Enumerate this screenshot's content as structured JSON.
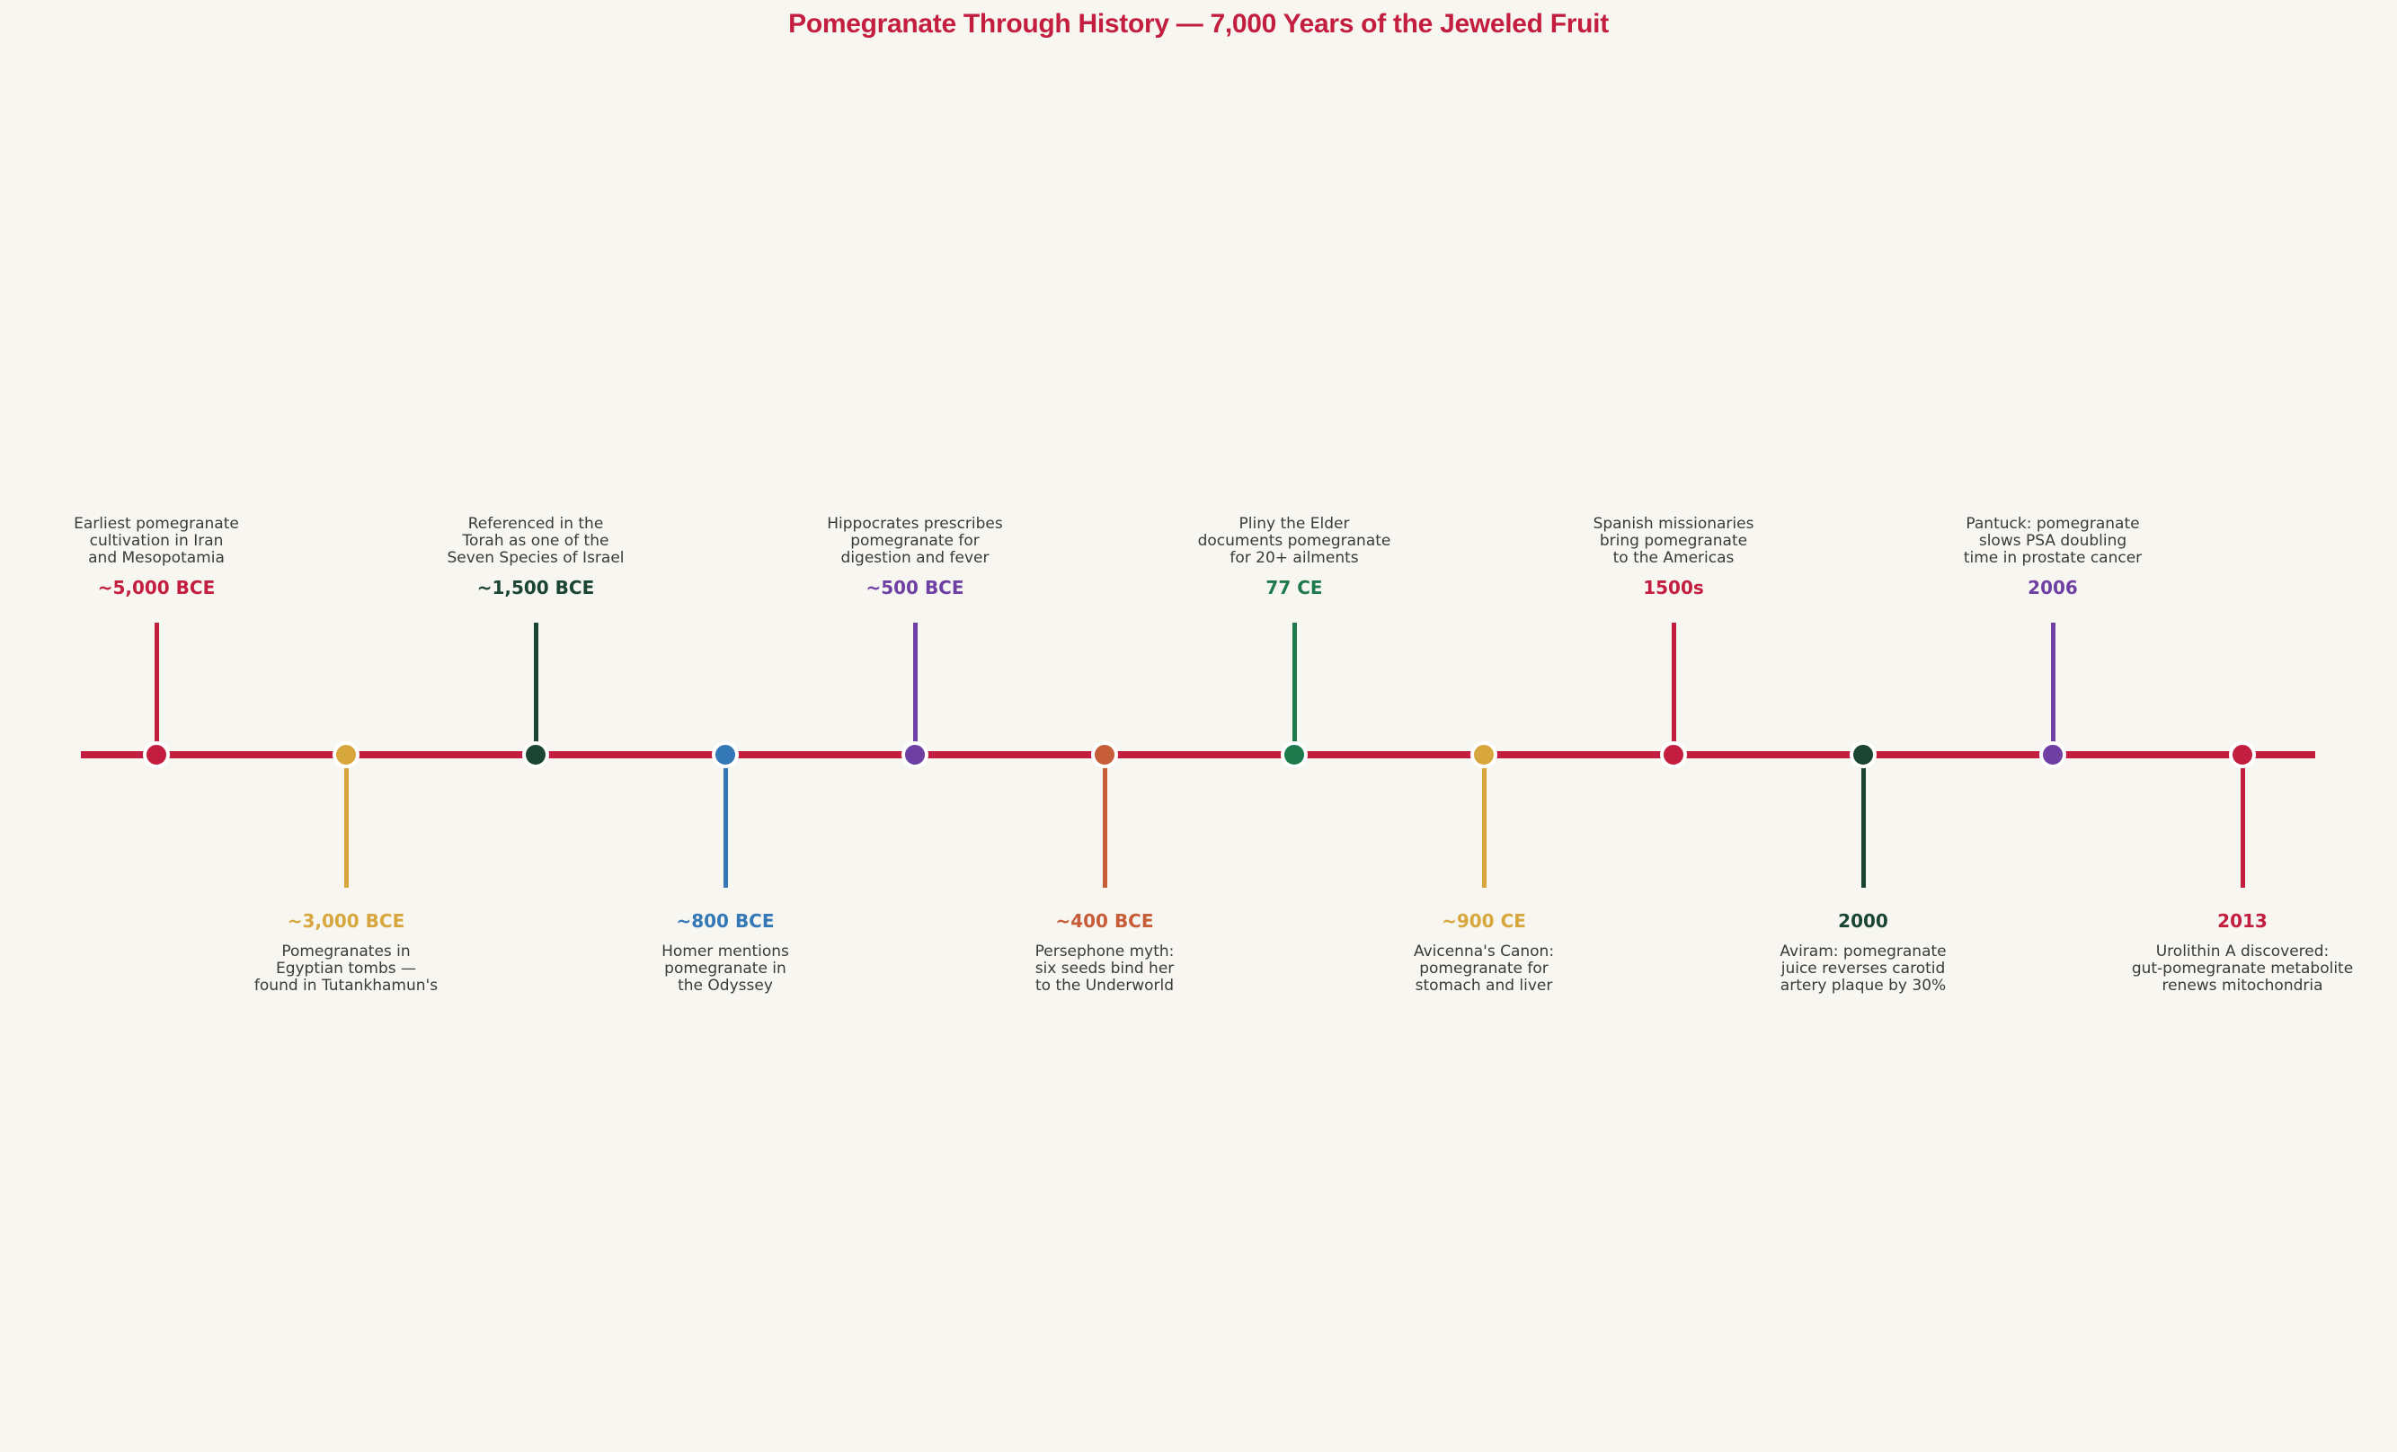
{
  "title": "Pomegranate Through History — 7,000 Years of the Jeweled Fruit",
  "colors": {
    "background": "#F8F6F0",
    "title": "#C31E3F",
    "axis": "#C31E3F",
    "description_text": "#3A3A3A",
    "marker_ring": "#FFFFFF",
    "crimson": "#C31E3F",
    "gold": "#D7A73E",
    "dark_green": "#1B4533",
    "blue": "#3478B6",
    "purple": "#6E40A4",
    "orange": "#C75C39",
    "green": "#1E7A4C"
  },
  "timeline": {
    "events": [
      {
        "date": "~5,000 BCE",
        "description": [
          "Earliest pomegranate",
          "cultivation in Iran",
          "and Mesopotamia"
        ],
        "side": "above",
        "color": "#C31E3F"
      },
      {
        "date": "~3,000 BCE",
        "description": [
          "Pomegranates in",
          "Egyptian tombs —",
          "found in Tutankhamun's"
        ],
        "side": "below",
        "color": "#D7A73E"
      },
      {
        "date": "~1,500 BCE",
        "description": [
          "Referenced in the",
          "Torah as one of the",
          "Seven Species of Israel"
        ],
        "side": "above",
        "color": "#1B4533"
      },
      {
        "date": "~800 BCE",
        "description": [
          "Homer mentions",
          "pomegranate in",
          "the Odyssey"
        ],
        "side": "below",
        "color": "#3478B6"
      },
      {
        "date": "~500 BCE",
        "description": [
          "Hippocrates prescribes",
          "pomegranate for",
          "digestion and fever"
        ],
        "side": "above",
        "color": "#6E40A4"
      },
      {
        "date": "~400 BCE",
        "description": [
          "Persephone myth:",
          "six seeds bind her",
          "to the Underworld"
        ],
        "side": "below",
        "color": "#C75C39"
      },
      {
        "date": "77 CE",
        "description": [
          "Pliny the Elder",
          "documents pomegranate",
          "for 20+ ailments"
        ],
        "side": "above",
        "color": "#1E7A4C"
      },
      {
        "date": "~900 CE",
        "description": [
          "Avicenna's Canon:",
          "pomegranate for",
          "stomach and liver"
        ],
        "side": "below",
        "color": "#D7A73E"
      },
      {
        "date": "1500s",
        "description": [
          "Spanish missionaries",
          "bring pomegranate",
          "to the Americas"
        ],
        "side": "above",
        "color": "#C31E3F"
      },
      {
        "date": "2000",
        "description": [
          "Aviram: pomegranate",
          "juice reverses carotid",
          "artery plaque by 30%"
        ],
        "side": "below",
        "color": "#1B4533"
      },
      {
        "date": "2006",
        "description": [
          "Pantuck: pomegranate",
          "slows PSA doubling",
          "time in prostate cancer"
        ],
        "side": "above",
        "color": "#6E40A4"
      },
      {
        "date": "2013",
        "description": [
          "Urolithin A discovered:",
          "gut-pomegranate metabolite",
          "renews mitochondria"
        ],
        "side": "below",
        "color": "#C31E3F"
      }
    ]
  }
}
